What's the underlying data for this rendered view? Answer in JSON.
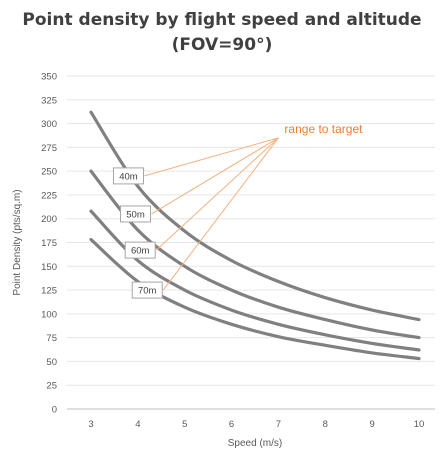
{
  "chart_data": {
    "type": "line",
    "title_line1": "Point density by flight speed and altitude",
    "title_line2": "(FOV=90°)",
    "xlabel": "Speed (m/s)",
    "ylabel": "Point Density (pts/sq.m)",
    "xlim": [
      3,
      10
    ],
    "ylim": [
      0,
      350
    ],
    "xticks": [
      "3",
      "4",
      "5",
      "6",
      "7",
      "8",
      "9",
      "10"
    ],
    "yticks": [
      "0",
      "25",
      "50",
      "75",
      "100",
      "125",
      "150",
      "175",
      "200",
      "225",
      "250",
      "275",
      "300",
      "325",
      "350"
    ],
    "grid": "horizontal",
    "series": [
      {
        "name": "40m",
        "x": [
          3,
          4,
          5,
          6,
          7,
          8,
          9,
          10
        ],
        "values": [
          312,
          234,
          187,
          156,
          134,
          117,
          104,
          94
        ]
      },
      {
        "name": "50m",
        "x": [
          3,
          4,
          5,
          6,
          7,
          8,
          9,
          10
        ],
        "values": [
          250,
          188,
          150,
          125,
          107,
          94,
          83,
          75
        ]
      },
      {
        "name": "60m",
        "x": [
          3,
          4,
          5,
          6,
          7,
          8,
          9,
          10
        ],
        "values": [
          208,
          156,
          125,
          104,
          89,
          78,
          69,
          62
        ]
      },
      {
        "name": "70m",
        "x": [
          3,
          4,
          5,
          6,
          7,
          8,
          9,
          10
        ],
        "values": [
          178,
          134,
          107,
          89,
          76,
          67,
          59,
          53
        ]
      }
    ],
    "annotation": {
      "text": "range to target",
      "x": 7,
      "y": 285
    },
    "series_label_anchors": [
      {
        "x": 3.8,
        "y": 245
      },
      {
        "x": 3.95,
        "y": 205
      },
      {
        "x": 4.05,
        "y": 167
      },
      {
        "x": 4.2,
        "y": 125
      }
    ],
    "series_color": "#808080",
    "annotation_color": "#ed7d31",
    "callout_color": "#f4b183"
  }
}
